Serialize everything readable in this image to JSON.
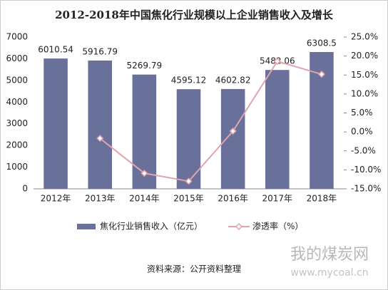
{
  "chart_data": {
    "type": "bar_line",
    "title": "2012-2018年中国焦化行业规模以上企业销售收入及增长",
    "categories": [
      "2012年",
      "2013年",
      "2014年",
      "2015年",
      "2016年",
      "2017年",
      "2018年"
    ],
    "series": [
      {
        "name": "焦化行业销售收入（亿元）",
        "type": "bar",
        "color": "#69719b",
        "values": [
          6010.54,
          5916.79,
          5269.79,
          4595.12,
          4602.82,
          5482.06,
          6308.5
        ]
      },
      {
        "name": "渗透率（%）",
        "type": "line",
        "axis": "y2",
        "color": "#e2a3ad",
        "values": [
          null,
          -1.7,
          -10.9,
          -13.0,
          0.2,
          18.6,
          15.2
        ]
      }
    ],
    "ylim": [
      0,
      7000
    ],
    "yticks": [
      0,
      1000,
      2000,
      3000,
      4000,
      5000,
      6000,
      7000
    ],
    "y2lim": [
      -15,
      25
    ],
    "y2ticks": [
      {
        "value": -15,
        "label": "-15.0%"
      },
      {
        "value": -10,
        "label": "-10.0%"
      },
      {
        "value": -5,
        "label": "-5.0%"
      },
      {
        "value": 0,
        "label": "0.0%"
      },
      {
        "value": 5,
        "label": "5.0%"
      },
      {
        "value": 10,
        "label": "10.0%"
      },
      {
        "value": 15,
        "label": "15.0%"
      },
      {
        "value": 20,
        "label": "20.0%"
      },
      {
        "value": 25,
        "label": "25.0%"
      }
    ],
    "legend": "bottom",
    "source": "资料来源：公开资料整理",
    "watermark": {
      "name": "我的煤炭网",
      "url": "www.mycoal.cn"
    }
  }
}
